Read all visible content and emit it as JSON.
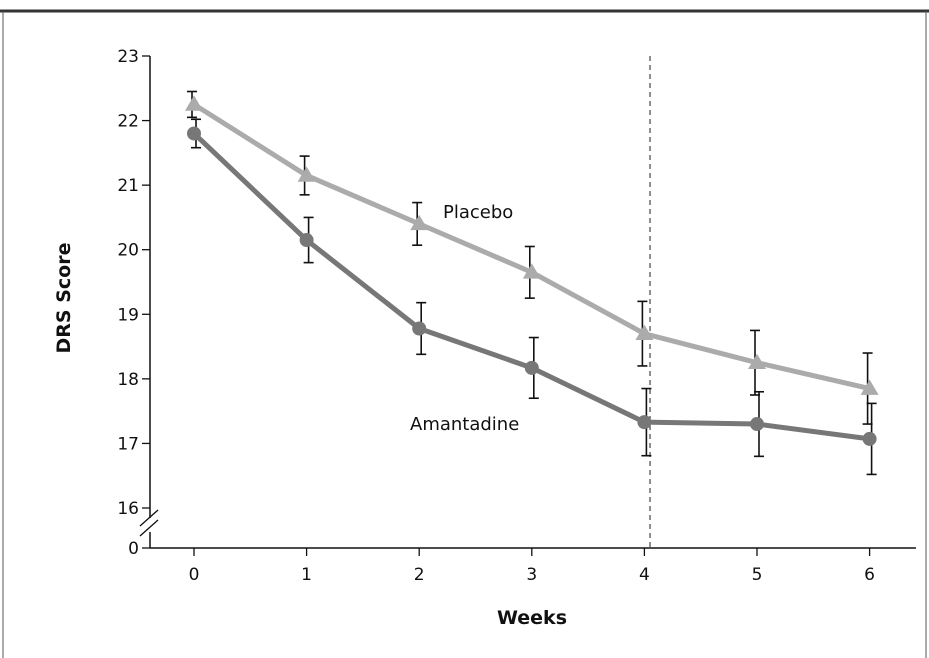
{
  "chart_data": {
    "type": "line",
    "xlabel": "Weeks",
    "ylabel": "DRS Score",
    "x": [
      0,
      1,
      2,
      3,
      4,
      5,
      6
    ],
    "xlim": [
      -0.5,
      6.4
    ],
    "ylim_display": [
      16,
      23
    ],
    "y_ticks": [
      16,
      17,
      18,
      19,
      20,
      21,
      22,
      23
    ],
    "y_axis_break": true,
    "y_zero_label": "0",
    "x_ticks": [
      "0",
      "1",
      "2",
      "3",
      "4",
      "5",
      "6"
    ],
    "y_tick_labels": [
      "16",
      "17",
      "18",
      "19",
      "20",
      "21",
      "22",
      "23"
    ],
    "reference_line": {
      "x": 4.05,
      "style": "dashed"
    },
    "series": [
      {
        "name": "Placebo",
        "marker": "triangle",
        "color": "#ababab",
        "values": [
          22.25,
          21.15,
          20.4,
          19.65,
          18.7,
          18.25,
          17.85
        ],
        "error": [
          0.2,
          0.3,
          0.33,
          0.4,
          0.5,
          0.5,
          0.55
        ]
      },
      {
        "name": "Amantadine",
        "marker": "circle",
        "color": "#777777",
        "values": [
          21.8,
          20.15,
          18.78,
          18.17,
          17.33,
          17.3,
          17.07
        ],
        "error": [
          0.22,
          0.35,
          0.4,
          0.47,
          0.52,
          0.5,
          0.55
        ]
      }
    ]
  }
}
